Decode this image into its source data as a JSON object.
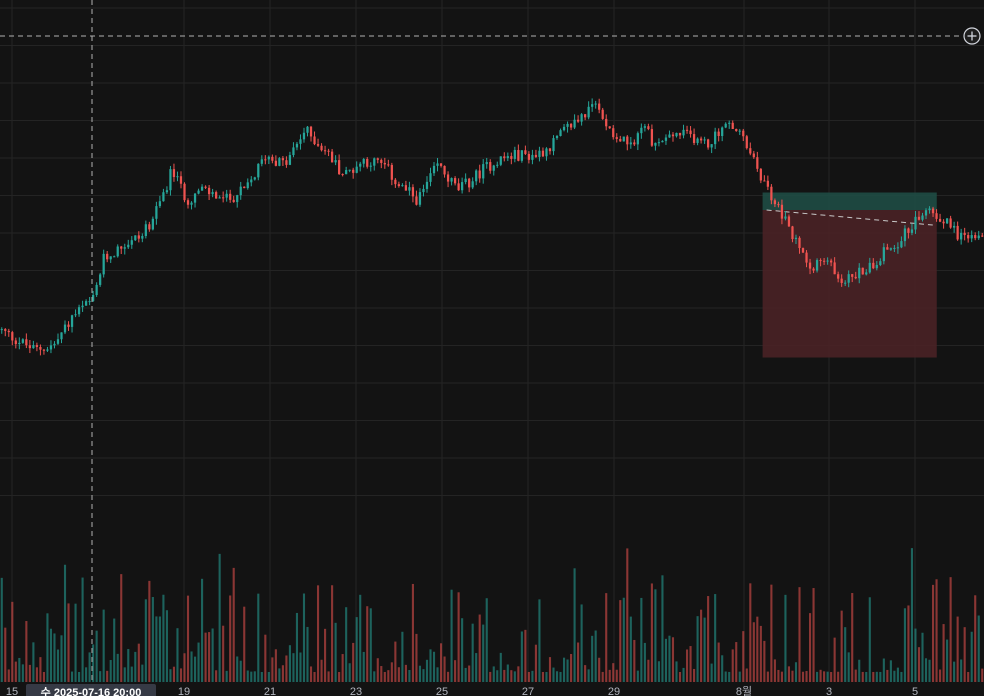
{
  "chart_data": {
    "type": "candlestick",
    "x_ticks": [
      "15",
      "19",
      "21",
      "23",
      "25",
      "27",
      "29",
      "8월",
      "3",
      "5"
    ],
    "crosshair_label": "수 2025-07-16 20:00",
    "colors": {
      "up": "#26a69a",
      "down": "#ef5350",
      "background": "#131313",
      "grid": "#242424",
      "profit_zone": "#1f4d45",
      "loss_zone": "#4a2226"
    },
    "grid": true,
    "position_tool": {
      "direction": "long",
      "entry_time_fraction": 0.775,
      "exit_time_fraction": 0.952,
      "entry_price": 0.62,
      "take_profit": 0.655,
      "stop_loss": 0.325
    },
    "price_path": [
      [
        0.0,
        0.38
      ],
      [
        0.035,
        0.34
      ],
      [
        0.055,
        0.35
      ],
      [
        0.075,
        0.41
      ],
      [
        0.095,
        0.44
      ],
      [
        0.105,
        0.52
      ],
      [
        0.125,
        0.55
      ],
      [
        0.145,
        0.57
      ],
      [
        0.16,
        0.62
      ],
      [
        0.175,
        0.7
      ],
      [
        0.19,
        0.64
      ],
      [
        0.205,
        0.66
      ],
      [
        0.23,
        0.64
      ],
      [
        0.25,
        0.66
      ],
      [
        0.27,
        0.73
      ],
      [
        0.29,
        0.71
      ],
      [
        0.31,
        0.78
      ],
      [
        0.33,
        0.74
      ],
      [
        0.35,
        0.69
      ],
      [
        0.37,
        0.72
      ],
      [
        0.39,
        0.71
      ],
      [
        0.405,
        0.67
      ],
      [
        0.425,
        0.64
      ],
      [
        0.445,
        0.71
      ],
      [
        0.465,
        0.66
      ],
      [
        0.48,
        0.68
      ],
      [
        0.49,
        0.7
      ],
      [
        0.505,
        0.72
      ],
      [
        0.525,
        0.73
      ],
      [
        0.545,
        0.73
      ],
      [
        0.56,
        0.75
      ],
      [
        0.58,
        0.79
      ],
      [
        0.605,
        0.83
      ],
      [
        0.625,
        0.77
      ],
      [
        0.64,
        0.75
      ],
      [
        0.655,
        0.79
      ],
      [
        0.665,
        0.75
      ],
      [
        0.685,
        0.77
      ],
      [
        0.7,
        0.77
      ],
      [
        0.72,
        0.75
      ],
      [
        0.735,
        0.79
      ],
      [
        0.75,
        0.78
      ],
      [
        0.765,
        0.72
      ],
      [
        0.78,
        0.66
      ],
      [
        0.795,
        0.61
      ],
      [
        0.81,
        0.55
      ],
      [
        0.825,
        0.51
      ],
      [
        0.84,
        0.52
      ],
      [
        0.855,
        0.48
      ],
      [
        0.87,
        0.49
      ],
      [
        0.885,
        0.51
      ],
      [
        0.9,
        0.54
      ],
      [
        0.915,
        0.56
      ],
      [
        0.93,
        0.6
      ],
      [
        0.945,
        0.62
      ],
      [
        0.96,
        0.6
      ],
      [
        0.975,
        0.57
      ],
      [
        1.0,
        0.56
      ]
    ]
  }
}
